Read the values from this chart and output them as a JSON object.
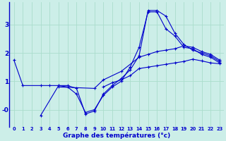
{
  "background_color": "#cceee8",
  "grid_color": "#aaddcc",
  "line_color": "#0000cc",
  "xlabel": "Graphe des températures (°c)",
  "xlim": [
    -0.5,
    23.5
  ],
  "ylim": [
    -0.6,
    3.8
  ],
  "yticks": [
    0,
    1,
    2,
    3
  ],
  "ytick_labels": [
    "-0",
    "1",
    "2",
    "3"
  ],
  "xticks": [
    0,
    1,
    2,
    3,
    4,
    5,
    6,
    7,
    8,
    9,
    10,
    11,
    12,
    13,
    14,
    15,
    16,
    17,
    18,
    19,
    20,
    21,
    22,
    23
  ],
  "series": [
    {
      "x": [
        0,
        1,
        3,
        4,
        5,
        6,
        7,
        8,
        9,
        10,
        11,
        12,
        13,
        14,
        15,
        16,
        17,
        18,
        19,
        20,
        21,
        22,
        23
      ],
      "y": [
        1.75,
        0.85,
        0.85,
        0.85,
        0.85,
        0.85,
        0.75,
        -0.15,
        -0.05,
        0.55,
        0.85,
        1.1,
        1.4,
        1.9,
        3.5,
        3.5,
        3.3,
        2.7,
        2.3,
        2.1,
        2.0,
        1.9,
        1.7
      ]
    },
    {
      "x": [
        5,
        9,
        10,
        12,
        14,
        15,
        16,
        17,
        18,
        19,
        20,
        21,
        22,
        23
      ],
      "y": [
        0.8,
        0.75,
        1.05,
        1.35,
        1.85,
        1.95,
        2.05,
        2.1,
        2.15,
        2.25,
        2.2,
        2.05,
        1.95,
        1.75
      ]
    },
    {
      "x": [
        10,
        11,
        12,
        13,
        14,
        15,
        16,
        17,
        18,
        19,
        20,
        21,
        22,
        23
      ],
      "y": [
        0.8,
        0.95,
        1.05,
        1.2,
        1.45,
        1.5,
        1.55,
        1.6,
        1.65,
        1.7,
        1.78,
        1.72,
        1.65,
        1.62
      ]
    },
    {
      "x": [
        3,
        5,
        6,
        7,
        8,
        9,
        10,
        11,
        12,
        13,
        14,
        15,
        16,
        17,
        18,
        19,
        20,
        21,
        22,
        23
      ],
      "y": [
        -0.2,
        0.85,
        0.8,
        0.55,
        -0.1,
        -0.0,
        0.5,
        0.8,
        1.0,
        1.5,
        2.2,
        3.45,
        3.45,
        2.85,
        2.6,
        2.2,
        2.15,
        1.95,
        1.85,
        1.65
      ]
    }
  ]
}
